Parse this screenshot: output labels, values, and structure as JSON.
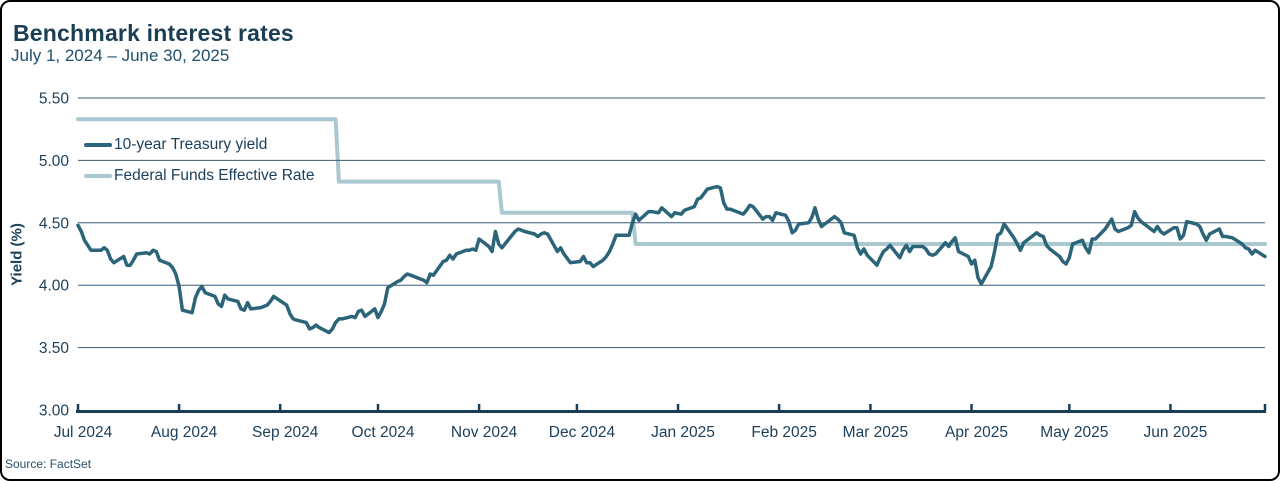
{
  "chart_data": {
    "type": "line",
    "title": "Benchmark interest rates",
    "subtitle": "July 1, 2024 – June 30, 2025",
    "ylabel": "Yield (%)",
    "source": "Source: FactSet",
    "ylim": [
      3.0,
      5.5
    ],
    "y_ticks": [
      5.5,
      5.0,
      4.5,
      4.0,
      3.5,
      3.0
    ],
    "x_range": [
      "2024-07-01",
      "2025-06-30"
    ],
    "x_ticks": [
      {
        "date": "2024-07-01",
        "label": "Jul 2024"
      },
      {
        "date": "2024-08-01",
        "label": "Aug 2024"
      },
      {
        "date": "2024-09-01",
        "label": "Sep 2024"
      },
      {
        "date": "2024-10-01",
        "label": "Oct 2024"
      },
      {
        "date": "2024-11-01",
        "label": "Nov 2024"
      },
      {
        "date": "2024-12-01",
        "label": "Dec 2024"
      },
      {
        "date": "2025-01-01",
        "label": "Jan 2025"
      },
      {
        "date": "2025-02-01",
        "label": "Feb 2025"
      },
      {
        "date": "2025-03-01",
        "label": "Mar 2025"
      },
      {
        "date": "2025-04-01",
        "label": "Apr 2025"
      },
      {
        "date": "2025-05-01",
        "label": "May 2025"
      },
      {
        "date": "2025-06-01",
        "label": "Jun 2025"
      }
    ],
    "grid": true,
    "legend_position": "inside-top-left",
    "colors": {
      "treasury": "#2c6579",
      "fed_funds": "#a9c8cf",
      "grid": "#3a5a77",
      "axis": "#1c3d56",
      "text": "#1d405c"
    },
    "series": [
      {
        "name": "10-year Treasury yield",
        "color": "#2c6579",
        "points": [
          [
            "2024-07-01",
            4.48
          ],
          [
            "2024-07-02",
            4.43
          ],
          [
            "2024-07-03",
            4.36
          ],
          [
            "2024-07-05",
            4.28
          ],
          [
            "2024-07-08",
            4.28
          ],
          [
            "2024-07-09",
            4.3
          ],
          [
            "2024-07-10",
            4.28
          ],
          [
            "2024-07-11",
            4.21
          ],
          [
            "2024-07-12",
            4.18
          ],
          [
            "2024-07-15",
            4.23
          ],
          [
            "2024-07-16",
            4.16
          ],
          [
            "2024-07-17",
            4.16
          ],
          [
            "2024-07-18",
            4.2
          ],
          [
            "2024-07-19",
            4.25
          ],
          [
            "2024-07-22",
            4.26
          ],
          [
            "2024-07-23",
            4.25
          ],
          [
            "2024-07-24",
            4.28
          ],
          [
            "2024-07-25",
            4.27
          ],
          [
            "2024-07-26",
            4.2
          ],
          [
            "2024-07-29",
            4.17
          ],
          [
            "2024-07-30",
            4.14
          ],
          [
            "2024-07-31",
            4.09
          ],
          [
            "2024-08-01",
            3.99
          ],
          [
            "2024-08-02",
            3.8
          ],
          [
            "2024-08-05",
            3.78
          ],
          [
            "2024-08-06",
            3.9
          ],
          [
            "2024-08-07",
            3.96
          ],
          [
            "2024-08-08",
            3.99
          ],
          [
            "2024-08-09",
            3.94
          ],
          [
            "2024-08-12",
            3.91
          ],
          [
            "2024-08-13",
            3.85
          ],
          [
            "2024-08-14",
            3.83
          ],
          [
            "2024-08-15",
            3.92
          ],
          [
            "2024-08-16",
            3.89
          ],
          [
            "2024-08-19",
            3.87
          ],
          [
            "2024-08-20",
            3.81
          ],
          [
            "2024-08-21",
            3.8
          ],
          [
            "2024-08-22",
            3.86
          ],
          [
            "2024-08-23",
            3.81
          ],
          [
            "2024-08-26",
            3.82
          ],
          [
            "2024-08-27",
            3.83
          ],
          [
            "2024-08-28",
            3.84
          ],
          [
            "2024-08-29",
            3.87
          ],
          [
            "2024-08-30",
            3.91
          ],
          [
            "2024-09-03",
            3.84
          ],
          [
            "2024-09-04",
            3.77
          ],
          [
            "2024-09-05",
            3.73
          ],
          [
            "2024-09-06",
            3.72
          ],
          [
            "2024-09-09",
            3.7
          ],
          [
            "2024-09-10",
            3.65
          ],
          [
            "2024-09-11",
            3.66
          ],
          [
            "2024-09-12",
            3.68
          ],
          [
            "2024-09-13",
            3.66
          ],
          [
            "2024-09-16",
            3.62
          ],
          [
            "2024-09-17",
            3.65
          ],
          [
            "2024-09-18",
            3.7
          ],
          [
            "2024-09-19",
            3.73
          ],
          [
            "2024-09-20",
            3.73
          ],
          [
            "2024-09-23",
            3.75
          ],
          [
            "2024-09-24",
            3.74
          ],
          [
            "2024-09-25",
            3.79
          ],
          [
            "2024-09-26",
            3.8
          ],
          [
            "2024-09-27",
            3.75
          ],
          [
            "2024-09-30",
            3.81
          ],
          [
            "2024-10-01",
            3.74
          ],
          [
            "2024-10-02",
            3.79
          ],
          [
            "2024-10-03",
            3.85
          ],
          [
            "2024-10-04",
            3.98
          ],
          [
            "2024-10-07",
            4.03
          ],
          [
            "2024-10-08",
            4.04
          ],
          [
            "2024-10-09",
            4.07
          ],
          [
            "2024-10-10",
            4.09
          ],
          [
            "2024-10-11",
            4.08
          ],
          [
            "2024-10-15",
            4.04
          ],
          [
            "2024-10-16",
            4.02
          ],
          [
            "2024-10-17",
            4.09
          ],
          [
            "2024-10-18",
            4.08
          ],
          [
            "2024-10-21",
            4.19
          ],
          [
            "2024-10-22",
            4.2
          ],
          [
            "2024-10-23",
            4.24
          ],
          [
            "2024-10-24",
            4.21
          ],
          [
            "2024-10-25",
            4.25
          ],
          [
            "2024-10-28",
            4.28
          ],
          [
            "2024-10-29",
            4.28
          ],
          [
            "2024-10-30",
            4.29
          ],
          [
            "2024-10-31",
            4.28
          ],
          [
            "2024-11-01",
            4.37
          ],
          [
            "2024-11-04",
            4.31
          ],
          [
            "2024-11-05",
            4.27
          ],
          [
            "2024-11-06",
            4.43
          ],
          [
            "2024-11-07",
            4.33
          ],
          [
            "2024-11-08",
            4.3
          ],
          [
            "2024-11-12",
            4.43
          ],
          [
            "2024-11-13",
            4.45
          ],
          [
            "2024-11-14",
            4.44
          ],
          [
            "2024-11-15",
            4.43
          ],
          [
            "2024-11-18",
            4.41
          ],
          [
            "2024-11-19",
            4.39
          ],
          [
            "2024-11-20",
            4.41
          ],
          [
            "2024-11-21",
            4.42
          ],
          [
            "2024-11-22",
            4.41
          ],
          [
            "2024-11-25",
            4.27
          ],
          [
            "2024-11-26",
            4.3
          ],
          [
            "2024-11-27",
            4.25
          ],
          [
            "2024-11-29",
            4.18
          ],
          [
            "2024-12-02",
            4.19
          ],
          [
            "2024-12-03",
            4.23
          ],
          [
            "2024-12-04",
            4.18
          ],
          [
            "2024-12-05",
            4.18
          ],
          [
            "2024-12-06",
            4.15
          ],
          [
            "2024-12-09",
            4.2
          ],
          [
            "2024-12-10",
            4.23
          ],
          [
            "2024-12-11",
            4.27
          ],
          [
            "2024-12-12",
            4.33
          ],
          [
            "2024-12-13",
            4.4
          ],
          [
            "2024-12-16",
            4.4
          ],
          [
            "2024-12-17",
            4.4
          ],
          [
            "2024-12-18",
            4.5
          ],
          [
            "2024-12-19",
            4.57
          ],
          [
            "2024-12-20",
            4.52
          ],
          [
            "2024-12-23",
            4.59
          ],
          [
            "2024-12-24",
            4.59
          ],
          [
            "2024-12-26",
            4.58
          ],
          [
            "2024-12-27",
            4.62
          ],
          [
            "2024-12-30",
            4.55
          ],
          [
            "2024-12-31",
            4.58
          ],
          [
            "2025-01-02",
            4.57
          ],
          [
            "2025-01-03",
            4.6
          ],
          [
            "2025-01-06",
            4.63
          ],
          [
            "2025-01-07",
            4.69
          ],
          [
            "2025-01-08",
            4.7
          ],
          [
            "2025-01-10",
            4.77
          ],
          [
            "2025-01-13",
            4.79
          ],
          [
            "2025-01-14",
            4.78
          ],
          [
            "2025-01-15",
            4.66
          ],
          [
            "2025-01-16",
            4.61
          ],
          [
            "2025-01-17",
            4.61
          ],
          [
            "2025-01-21",
            4.57
          ],
          [
            "2025-01-22",
            4.6
          ],
          [
            "2025-01-23",
            4.64
          ],
          [
            "2025-01-24",
            4.63
          ],
          [
            "2025-01-27",
            4.53
          ],
          [
            "2025-01-28",
            4.55
          ],
          [
            "2025-01-29",
            4.55
          ],
          [
            "2025-01-30",
            4.52
          ],
          [
            "2025-01-31",
            4.58
          ],
          [
            "2025-02-03",
            4.56
          ],
          [
            "2025-02-04",
            4.51
          ],
          [
            "2025-02-05",
            4.42
          ],
          [
            "2025-02-06",
            4.44
          ],
          [
            "2025-02-07",
            4.49
          ],
          [
            "2025-02-10",
            4.5
          ],
          [
            "2025-02-11",
            4.54
          ],
          [
            "2025-02-12",
            4.62
          ],
          [
            "2025-02-13",
            4.53
          ],
          [
            "2025-02-14",
            4.47
          ],
          [
            "2025-02-18",
            4.55
          ],
          [
            "2025-02-19",
            4.53
          ],
          [
            "2025-02-20",
            4.5
          ],
          [
            "2025-02-21",
            4.42
          ],
          [
            "2025-02-24",
            4.4
          ],
          [
            "2025-02-25",
            4.3
          ],
          [
            "2025-02-26",
            4.25
          ],
          [
            "2025-02-27",
            4.29
          ],
          [
            "2025-02-28",
            4.24
          ],
          [
            "2025-03-03",
            4.16
          ],
          [
            "2025-03-04",
            4.22
          ],
          [
            "2025-03-05",
            4.27
          ],
          [
            "2025-03-06",
            4.29
          ],
          [
            "2025-03-07",
            4.32
          ],
          [
            "2025-03-10",
            4.22
          ],
          [
            "2025-03-11",
            4.28
          ],
          [
            "2025-03-12",
            4.32
          ],
          [
            "2025-03-13",
            4.27
          ],
          [
            "2025-03-14",
            4.31
          ],
          [
            "2025-03-17",
            4.31
          ],
          [
            "2025-03-18",
            4.29
          ],
          [
            "2025-03-19",
            4.25
          ],
          [
            "2025-03-20",
            4.24
          ],
          [
            "2025-03-21",
            4.25
          ],
          [
            "2025-03-24",
            4.34
          ],
          [
            "2025-03-25",
            4.31
          ],
          [
            "2025-03-26",
            4.35
          ],
          [
            "2025-03-27",
            4.38
          ],
          [
            "2025-03-28",
            4.27
          ],
          [
            "2025-03-31",
            4.23
          ],
          [
            "2025-04-01",
            4.17
          ],
          [
            "2025-04-02",
            4.2
          ],
          [
            "2025-04-03",
            4.06
          ],
          [
            "2025-04-04",
            4.01
          ],
          [
            "2025-04-07",
            4.15
          ],
          [
            "2025-04-08",
            4.26
          ],
          [
            "2025-04-09",
            4.4
          ],
          [
            "2025-04-10",
            4.42
          ],
          [
            "2025-04-11",
            4.49
          ],
          [
            "2025-04-14",
            4.38
          ],
          [
            "2025-04-15",
            4.33
          ],
          [
            "2025-04-16",
            4.28
          ],
          [
            "2025-04-17",
            4.34
          ],
          [
            "2025-04-21",
            4.42
          ],
          [
            "2025-04-22",
            4.4
          ],
          [
            "2025-04-23",
            4.39
          ],
          [
            "2025-04-24",
            4.32
          ],
          [
            "2025-04-25",
            4.29
          ],
          [
            "2025-04-28",
            4.23
          ],
          [
            "2025-04-29",
            4.19
          ],
          [
            "2025-04-30",
            4.17
          ],
          [
            "2025-05-01",
            4.22
          ],
          [
            "2025-05-02",
            4.33
          ],
          [
            "2025-05-05",
            4.36
          ],
          [
            "2025-05-06",
            4.3
          ],
          [
            "2025-05-07",
            4.26
          ],
          [
            "2025-05-08",
            4.37
          ],
          [
            "2025-05-09",
            4.37
          ],
          [
            "2025-05-12",
            4.45
          ],
          [
            "2025-05-13",
            4.49
          ],
          [
            "2025-05-14",
            4.53
          ],
          [
            "2025-05-15",
            4.45
          ],
          [
            "2025-05-16",
            4.43
          ],
          [
            "2025-05-19",
            4.46
          ],
          [
            "2025-05-20",
            4.48
          ],
          [
            "2025-05-21",
            4.59
          ],
          [
            "2025-05-22",
            4.54
          ],
          [
            "2025-05-23",
            4.51
          ],
          [
            "2025-05-27",
            4.43
          ],
          [
            "2025-05-28",
            4.47
          ],
          [
            "2025-05-29",
            4.43
          ],
          [
            "2025-05-30",
            4.41
          ],
          [
            "2025-06-02",
            4.46
          ],
          [
            "2025-06-03",
            4.46
          ],
          [
            "2025-06-04",
            4.37
          ],
          [
            "2025-06-05",
            4.4
          ],
          [
            "2025-06-06",
            4.51
          ],
          [
            "2025-06-09",
            4.49
          ],
          [
            "2025-06-10",
            4.47
          ],
          [
            "2025-06-11",
            4.41
          ],
          [
            "2025-06-12",
            4.36
          ],
          [
            "2025-06-13",
            4.41
          ],
          [
            "2025-06-16",
            4.45
          ],
          [
            "2025-06-17",
            4.39
          ],
          [
            "2025-06-18",
            4.39
          ],
          [
            "2025-06-20",
            4.38
          ],
          [
            "2025-06-23",
            4.33
          ],
          [
            "2025-06-24",
            4.3
          ],
          [
            "2025-06-25",
            4.29
          ],
          [
            "2025-06-26",
            4.25
          ],
          [
            "2025-06-27",
            4.28
          ],
          [
            "2025-06-30",
            4.23
          ]
        ]
      },
      {
        "name": "Federal Funds Effective Rate",
        "color": "#a9c8cf",
        "step": true,
        "points": [
          [
            "2024-07-01",
            5.33
          ],
          [
            "2024-09-18",
            5.33
          ],
          [
            "2024-09-19",
            4.83
          ],
          [
            "2024-11-07",
            4.83
          ],
          [
            "2024-11-08",
            4.58
          ],
          [
            "2024-12-18",
            4.58
          ],
          [
            "2024-12-19",
            4.33
          ],
          [
            "2025-06-30",
            4.33
          ]
        ]
      }
    ]
  }
}
